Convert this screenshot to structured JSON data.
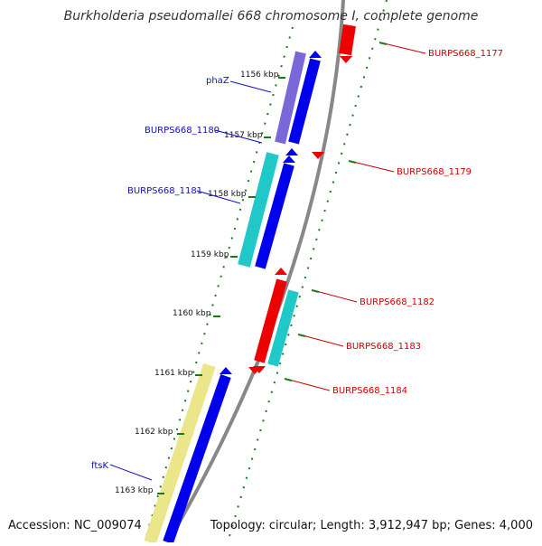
{
  "title": "Burkholderia pseudomallei 668 chromosome I, complete genome",
  "footer": {
    "accession": "Accession: NC_009074",
    "summary": "Topology: circular; Length: 3,912,947 bp; Genes: 4,000"
  },
  "colors": {
    "forward_gene": "#0000ee",
    "forward_label": "#1010c0",
    "reverse_gene": "#ee0000",
    "reverse_label": "#cc0000",
    "purple_gene": "#7b68d8",
    "cyan_gene": "#20c8c8",
    "yellow_gene": "#ece68a",
    "backbone": "#888888",
    "tick": "#1a7a1a"
  },
  "ticks": [
    {
      "label": "1156 kbp"
    },
    {
      "label": "1157 kbp"
    },
    {
      "label": "1158 kbp"
    },
    {
      "label": "1159 kbp"
    },
    {
      "label": "1160 kbp"
    },
    {
      "label": "1161 kbp"
    },
    {
      "label": "1162 kbp"
    },
    {
      "label": "1163 kbp"
    }
  ],
  "forward_genes": [
    {
      "name": "phaZ"
    },
    {
      "name": "BURPS668_1180"
    },
    {
      "name": "BURPS668_1181"
    },
    {
      "name": "ftsK"
    }
  ],
  "reverse_genes": [
    {
      "name": "BURPS668_1177"
    },
    {
      "name": "BURPS668_1179"
    },
    {
      "name": "BURPS668_1182"
    },
    {
      "name": "BURPS668_1183"
    },
    {
      "name": "BURPS668_1184"
    }
  ]
}
